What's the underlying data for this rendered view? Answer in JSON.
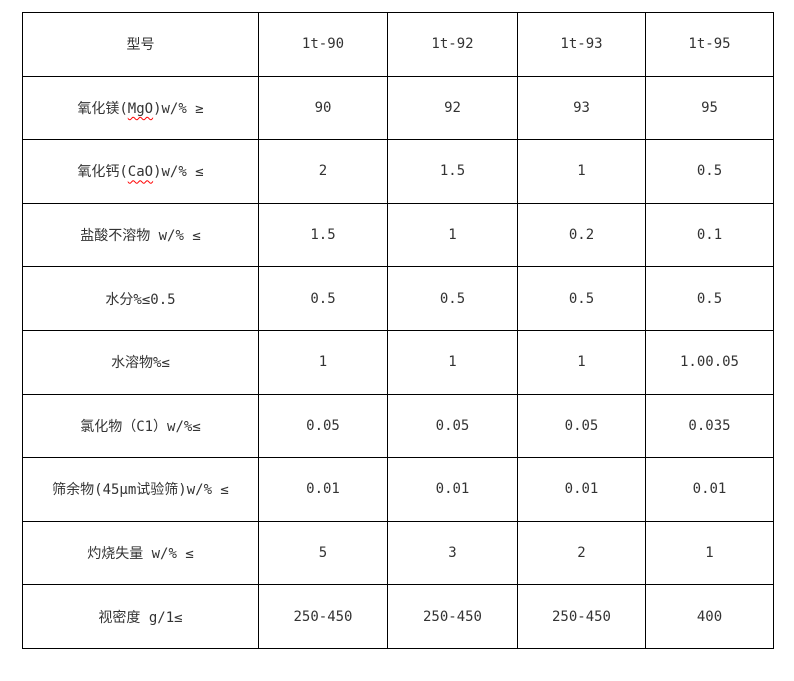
{
  "colors": {
    "border": "#000000",
    "text": "#333333",
    "squiggle": "#ff0000",
    "background": "#ffffff"
  },
  "table": {
    "columns": [
      "型号",
      "1t-90",
      "1t-92",
      "1t-93",
      "1t-95"
    ],
    "rows": [
      {
        "label": [
          {
            "t": "氧化镁("
          },
          {
            "t": "MgO",
            "wavy": true
          },
          {
            "t": ")w/% ≥"
          }
        ],
        "values": [
          "90",
          "92",
          "93",
          "95"
        ]
      },
      {
        "label": [
          {
            "t": "氧化钙("
          },
          {
            "t": "CaO",
            "wavy": true
          },
          {
            "t": ")w/% ≤"
          }
        ],
        "values": [
          "2",
          "1.5",
          "1",
          "0.5"
        ]
      },
      {
        "label": [
          {
            "t": "盐酸不溶物 w/% ≤"
          }
        ],
        "values": [
          "1.5",
          "1",
          "0.2",
          "0.1"
        ]
      },
      {
        "label": [
          {
            "t": "水分%≤0.5"
          }
        ],
        "values": [
          "0.5",
          "0.5",
          "0.5",
          "0.5"
        ]
      },
      {
        "label": [
          {
            "t": "水溶物%≤"
          }
        ],
        "values": [
          "1",
          "1",
          "1",
          "1.00.05"
        ]
      },
      {
        "label": [
          {
            "t": "氯化物（C1）w/%≤"
          }
        ],
        "values": [
          "0.05",
          "0.05",
          "0.05",
          "0.035"
        ]
      },
      {
        "label": [
          {
            "t": "筛余物(45μm试验筛)w/% ≤"
          }
        ],
        "values": [
          "0.01",
          "0.01",
          "0.01",
          "0.01"
        ]
      },
      {
        "label": [
          {
            "t": "灼烧失量 w/% ≤"
          }
        ],
        "values": [
          "5",
          "3",
          "2",
          "1"
        ]
      },
      {
        "label": [
          {
            "t": "视密度 g/1≤"
          }
        ],
        "values": [
          "250-450",
          "250-450",
          "250-450",
          "400"
        ]
      }
    ]
  }
}
